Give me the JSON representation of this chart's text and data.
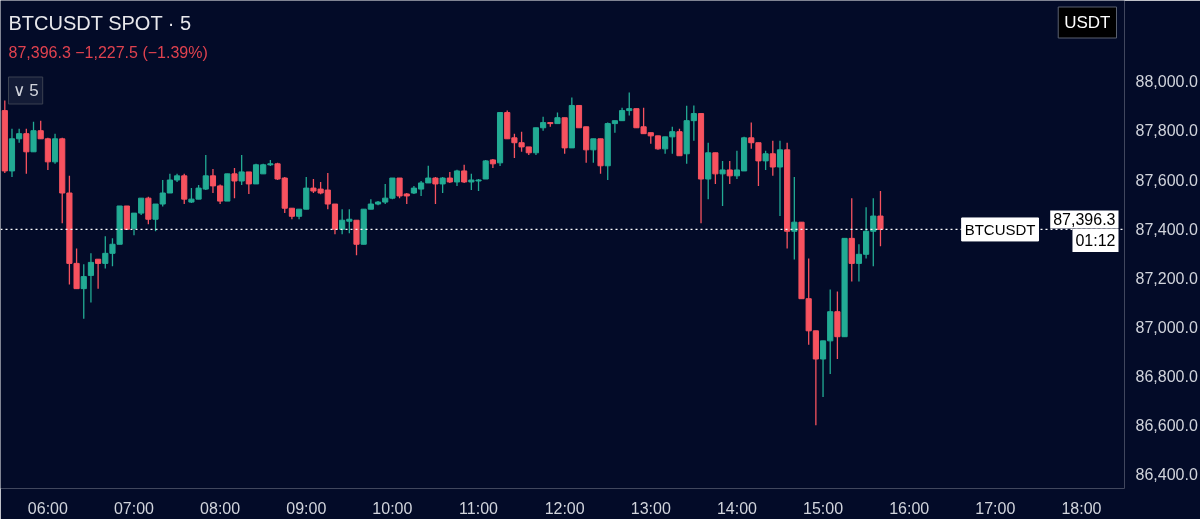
{
  "chart_data": {
    "type": "candlestick",
    "title": "BTCUSDT SPOT · 5",
    "subtitle": "87,396.3 −1,227.5 (−1.39%)",
    "x": [
      5.5,
      5.5833,
      5.6667,
      5.75,
      5.8333,
      5.9167,
      6,
      6.0833,
      6.1667,
      6.25,
      6.3333,
      6.4167,
      6.5,
      6.5833,
      6.6667,
      6.75,
      6.8333,
      6.9167,
      7,
      7.0833,
      7.1667,
      7.25,
      7.3333,
      7.4167,
      7.5,
      7.5833,
      7.6667,
      7.75,
      7.8333,
      7.9167,
      8,
      8.0833,
      8.1667,
      8.25,
      8.3333,
      8.4167,
      8.5,
      8.5833,
      8.6667,
      8.75,
      8.8333,
      8.9167,
      9,
      9.0833,
      9.1667,
      9.25,
      9.3333,
      9.4167,
      9.5,
      9.5833,
      9.6667,
      9.75,
      9.8333,
      9.9167,
      10,
      10.0833,
      10.1667,
      10.25,
      10.3333,
      10.4167,
      10.5,
      10.5833,
      10.6667,
      10.75,
      10.8333,
      10.9167,
      11,
      11.0833,
      11.1667,
      11.25,
      11.3333,
      11.4167,
      11.5,
      11.5833,
      11.6667,
      11.75,
      11.8333,
      11.9167,
      12,
      12.0833,
      12.1667,
      12.25,
      12.3333,
      12.4167,
      12.5,
      12.5833,
      12.6667,
      12.75,
      12.8333,
      12.9167,
      13,
      13.0833,
      13.1667,
      13.25,
      13.3333,
      13.4167,
      13.5,
      13.5833,
      13.6667,
      13.75,
      13.8333,
      13.9167,
      14,
      14.0833,
      14.1667,
      14.25,
      14.3333,
      14.4167,
      14.5,
      14.5833,
      14.6667,
      14.75,
      14.8333,
      14.9167,
      15,
      15.0833,
      15.1667,
      15.25,
      15.3333,
      15.4167,
      15.5,
      15.5833,
      15.6667
    ],
    "ohlc": [
      [
        87881,
        87922,
        87627,
        87635
      ],
      [
        87635,
        87807,
        87610,
        87766
      ],
      [
        87766,
        87807,
        87750,
        87787
      ],
      [
        87787,
        87807,
        87623,
        87713
      ],
      [
        87713,
        87836,
        87713,
        87799
      ],
      [
        87799,
        87840,
        87766,
        87766
      ],
      [
        87766,
        87770,
        87639,
        87672
      ],
      [
        87672,
        87787,
        87664,
        87766
      ],
      [
        87766,
        87770,
        87422,
        87545
      ],
      [
        87545,
        87615,
        87172,
        87258
      ],
      [
        87258,
        87319,
        87155,
        87155
      ],
      [
        87155,
        87254,
        87032,
        87204
      ],
      [
        87209,
        87299,
        87098,
        87262
      ],
      [
        87275,
        87275,
        87155,
        87258
      ],
      [
        87258,
        87369,
        87237,
        87299
      ],
      [
        87299,
        87360,
        87246,
        87336
      ],
      [
        87336,
        87492,
        87336,
        87492
      ],
      [
        87492,
        87492,
        87397,
        87397
      ],
      [
        87401,
        87463,
        87373,
        87463
      ],
      [
        87463,
        87524,
        87455,
        87524
      ],
      [
        87524,
        87530,
        87418,
        87438
      ],
      [
        87438,
        87500,
        87389,
        87500
      ],
      [
        87500,
        87598,
        87490,
        87545
      ],
      [
        87545,
        87623,
        87545,
        87598
      ],
      [
        87598,
        87623,
        87590,
        87615
      ],
      [
        87615,
        87623,
        87500,
        87520
      ],
      [
        87508,
        87565,
        87504,
        87520
      ],
      [
        87520,
        87578,
        87520,
        87565
      ],
      [
        87561,
        87700,
        87557,
        87615
      ],
      [
        87615,
        87643,
        87545,
        87574
      ],
      [
        87574,
        87580,
        87500,
        87512
      ],
      [
        87512,
        87623,
        87512,
        87623
      ],
      [
        87623,
        87647,
        87524,
        87594
      ],
      [
        87594,
        87700,
        87578,
        87631
      ],
      [
        87631,
        87631,
        87541,
        87582
      ],
      [
        87582,
        87664,
        87582,
        87660
      ],
      [
        87623,
        87664,
        87623,
        87660
      ],
      [
        87660,
        87680,
        87655,
        87664
      ],
      [
        87664,
        87668,
        87598,
        87602
      ],
      [
        87606,
        87610,
        87463,
        87483
      ],
      [
        87483,
        87483,
        87438,
        87450
      ],
      [
        87450,
        87479,
        87438,
        87479
      ],
      [
        87479,
        87610,
        87479,
        87565
      ],
      [
        87565,
        87602,
        87545,
        87553
      ],
      [
        87561,
        87590,
        87540,
        87545
      ],
      [
        87557,
        87627,
        87479,
        87500
      ],
      [
        87500,
        87500,
        87377,
        87397
      ],
      [
        87397,
        87479,
        87377,
        87434
      ],
      [
        87430,
        87479,
        87381,
        87438
      ],
      [
        87434,
        87434,
        87291,
        87336
      ],
      [
        87336,
        87479,
        87336,
        87479
      ],
      [
        87479,
        87520,
        87479,
        87500
      ],
      [
        87500,
        87512,
        87495,
        87508
      ],
      [
        87508,
        87582,
        87500,
        87524
      ],
      [
        87524,
        87606,
        87520,
        87606
      ],
      [
        87606,
        87606,
        87524,
        87533
      ],
      [
        87541,
        87545,
        87500,
        87533
      ],
      [
        87545,
        87574,
        87541,
        87565
      ],
      [
        87561,
        87594,
        87533,
        87586
      ],
      [
        87586,
        87656,
        87586,
        87606
      ],
      [
        87606,
        87610,
        87500,
        87582
      ],
      [
        87582,
        87610,
        87545,
        87606
      ],
      [
        87606,
        87631,
        87586,
        87590
      ],
      [
        87590,
        87640,
        87574,
        87635
      ],
      [
        87635,
        87660,
        87586,
        87590
      ],
      [
        87590,
        87623,
        87557,
        87598
      ],
      [
        87594,
        87602,
        87553,
        87598
      ],
      [
        87602,
        87680,
        87602,
        87676
      ],
      [
        87680,
        87684,
        87647,
        87664
      ],
      [
        87668,
        87873,
        87655,
        87873
      ],
      [
        87873,
        87881,
        87766,
        87766
      ],
      [
        87770,
        87787,
        87688,
        87750
      ],
      [
        87750,
        87795,
        87713,
        87733
      ],
      [
        87733,
        87733,
        87700,
        87709
      ],
      [
        87709,
        87811,
        87700,
        87811
      ],
      [
        87811,
        87856,
        87799,
        87832
      ],
      [
        87832,
        87832,
        87815,
        87828
      ],
      [
        87828,
        87873,
        87828,
        87852
      ],
      [
        87852,
        87852,
        87705,
        87729
      ],
      [
        87729,
        87934,
        87729,
        87902
      ],
      [
        87902,
        87902,
        87811,
        87811
      ],
      [
        87815,
        87815,
        87668,
        87721
      ],
      [
        87721,
        87766,
        87668,
        87766
      ],
      [
        87766,
        87766,
        87623,
        87656
      ],
      [
        87656,
        87832,
        87598,
        87828
      ],
      [
        87828,
        87840,
        87791,
        87840
      ],
      [
        87840,
        87893,
        87840,
        87881
      ],
      [
        87881,
        87955,
        87861,
        87889
      ],
      [
        87889,
        87889,
        87811,
        87811
      ],
      [
        87815,
        87893,
        87787,
        87787
      ],
      [
        87791,
        87791,
        87746,
        87778
      ],
      [
        87778,
        87778,
        87721,
        87725
      ],
      [
        87725,
        87774,
        87705,
        87774
      ],
      [
        87774,
        87815,
        87705,
        87795
      ],
      [
        87795,
        87807,
        87697,
        87697
      ],
      [
        87705,
        87901,
        87664,
        87840
      ],
      [
        87840,
        87902,
        87758,
        87869
      ],
      [
        87869,
        87869,
        87422,
        87602
      ],
      [
        87602,
        87750,
        87520,
        87709
      ],
      [
        87709,
        87709,
        87582,
        87623
      ],
      [
        87623,
        87676,
        87492,
        87639
      ],
      [
        87639,
        87676,
        87582,
        87615
      ],
      [
        87615,
        87717,
        87602,
        87639
      ],
      [
        87635,
        87774,
        87635,
        87770
      ],
      [
        87770,
        87832,
        87725,
        87750
      ],
      [
        87750,
        87750,
        87574,
        87676
      ],
      [
        87676,
        87717,
        87639,
        87705
      ],
      [
        87705,
        87758,
        87615,
        87651
      ],
      [
        87651,
        87758,
        87451,
        87721
      ],
      [
        87721,
        87750,
        87319,
        87389
      ],
      [
        87389,
        87610,
        87274,
        87426
      ],
      [
        87426,
        87426,
        87114,
        87114
      ],
      [
        87114,
        87278,
        86926,
        86983
      ],
      [
        86983,
        86983,
        86598,
        86868
      ],
      [
        86868,
        86942,
        86713,
        86942
      ],
      [
        86942,
        87151,
        86807,
        87061
      ],
      [
        87061,
        87143,
        86868,
        86959
      ],
      [
        86959,
        87360,
        86959,
        87360
      ],
      [
        87360,
        87524,
        87184,
        87258
      ],
      [
        87258,
        87336,
        87184,
        87295
      ],
      [
        87295,
        87487,
        87278,
        87389
      ],
      [
        87389,
        87524,
        87246,
        87451
      ],
      [
        87451,
        87553,
        87328,
        87396.3
      ]
    ],
    "xlim": [
      5.45,
      18.5
    ],
    "xticks": [
      {
        "value": 6,
        "label": "06:00"
      },
      {
        "value": 7,
        "label": "07:00"
      },
      {
        "value": 8,
        "label": "08:00"
      },
      {
        "value": 9,
        "label": "09:00"
      },
      {
        "value": 10,
        "label": "10:00"
      },
      {
        "value": 11,
        "label": "11:00"
      },
      {
        "value": 12,
        "label": "12:00"
      },
      {
        "value": 13,
        "label": "13:00"
      },
      {
        "value": 14,
        "label": "14:00"
      },
      {
        "value": 15,
        "label": "15:00"
      },
      {
        "value": 16,
        "label": "16:00"
      },
      {
        "value": 17,
        "label": "17:00"
      },
      {
        "value": 18,
        "label": "18:00"
      }
    ],
    "ylim": [
      86340,
      88330
    ],
    "yticks": [
      {
        "value": 86400,
        "label": "86,400.0"
      },
      {
        "value": 86600,
        "label": "86,600.0"
      },
      {
        "value": 86800,
        "label": "86,800.0"
      },
      {
        "value": 87000,
        "label": "87,000.0"
      },
      {
        "value": 87200,
        "label": "87,200.0"
      },
      {
        "value": 87400,
        "label": "87,400.0"
      },
      {
        "value": 87600,
        "label": "87,600.0"
      },
      {
        "value": 87800,
        "label": "87,800.0"
      },
      {
        "value": 88000,
        "label": "88,000.0"
      }
    ],
    "ref_lines": [
      {
        "axis": "y",
        "value": 87396.3,
        "label": "BTCUSDT",
        "color": "#ffffff",
        "line_style": "dotted"
      }
    ],
    "annotations": [
      {
        "text": "87,396.3",
        "y": 87396.3
      },
      {
        "text": "01:12",
        "y": 87396.3
      },
      "∨ 5",
      "USDT"
    ],
    "grid": false
  }
}
